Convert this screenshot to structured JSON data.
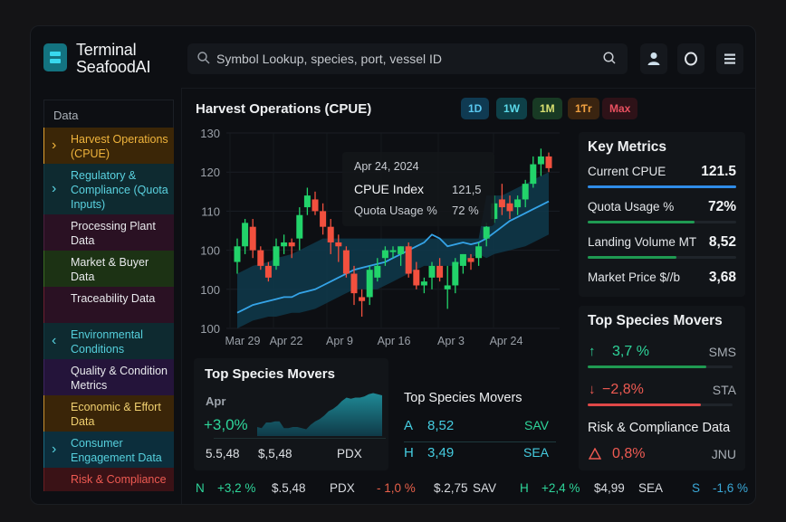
{
  "app": {
    "title_line1": "Terminal",
    "title_line2": "SeafoodAI",
    "logo_icon": "stack-icon"
  },
  "header": {
    "search_placeholder": "Symbol Lookup, species, port, vessel ID",
    "icons": [
      "search-icon",
      "user-icon",
      "circle-icon",
      "menu-icon"
    ]
  },
  "sidebar": {
    "title": "Data",
    "items": [
      {
        "label": "Harvest Operations (CPUE)",
        "chevron": "›",
        "text_color": "#f0b43c",
        "bg": "#3b2607",
        "border": "#e0a030"
      },
      {
        "label": "Regulatory & Compliance (Quota Inputs)",
        "chevron": "›",
        "text_color": "#5ad2e0",
        "bg": "#0e2a30",
        "border": "#123a42"
      },
      {
        "label": "Processing Plant Data",
        "chevron": "",
        "text_color": "#e8e9ec",
        "bg": "#2a1123",
        "border": "#4a1f3e"
      },
      {
        "label": "Market & Buyer Data",
        "chevron": "",
        "text_color": "#e8e9ec",
        "bg": "#1c3214",
        "border": "#3a6a22"
      },
      {
        "label": "Traceability Data",
        "chevron": "",
        "text_color": "#e8e9ec",
        "bg": "#2a1123",
        "border": "#6a2030"
      },
      {
        "label": "Environmental Conditions",
        "chevron": "‹",
        "text_color": "#55cfdc",
        "bg": "#0e2a30",
        "border": "#123a42"
      },
      {
        "label": "Quality & Condition Metrics",
        "chevron": "",
        "text_color": "#e8e9ec",
        "bg": "#24143a",
        "border": "#3d2560"
      },
      {
        "label": "Economic & Effort Data",
        "chevron": "",
        "text_color": "#f0d070",
        "bg": "#3a2508",
        "border": "#c89030"
      },
      {
        "label": "Consumer Engagement Data",
        "chevron": "›",
        "text_color": "#55cfdc",
        "bg": "#0c2e3c",
        "border": "#1a6a80"
      },
      {
        "label": "Risk & Compliance",
        "chevron": "",
        "text_color": "#ee5a52",
        "bg": "#3a1216",
        "border": "#6a1e22"
      }
    ]
  },
  "main": {
    "chart_title": "Harvest Operations (CPUE)",
    "timeframes": [
      {
        "label": "1D",
        "color": "#5ac8f0",
        "bg": "#0f3a52"
      },
      {
        "label": "1W",
        "color": "#5ad8e8",
        "bg": "#0e4048"
      },
      {
        "label": "1M",
        "color": "#d8e070",
        "bg": "#183a24"
      },
      {
        "label": "1Ƭr",
        "color": "#f0a040",
        "bg": "#3a2410"
      },
      {
        "label": "Max",
        "color": "#e85060",
        "bg": "#2e1218"
      }
    ],
    "tooltip": {
      "date": "Apr 24, 2024",
      "row1_label": "CPUE Index",
      "row1_value": "121,5",
      "row2_label": "Quota Usage %",
      "row2_value": "72 %"
    }
  },
  "chart_data": {
    "type": "candlestick",
    "title": "Harvest Operations (CPUE)",
    "y_tick_labels": [
      "130",
      "120",
      "110",
      "100",
      "100",
      "100"
    ],
    "x_tick_labels": [
      "Mar 29",
      "Apr 22",
      "Apr 9",
      "Apr 16",
      "Apr 3",
      "Apr 24"
    ],
    "ylim": [
      80,
      130
    ],
    "grid": true,
    "candles": [
      {
        "o": 97,
        "h": 103,
        "l": 94,
        "c": 101
      },
      {
        "o": 101,
        "h": 108,
        "l": 99,
        "c": 107
      },
      {
        "o": 106,
        "h": 108,
        "l": 98,
        "c": 100
      },
      {
        "o": 100,
        "h": 101,
        "l": 95,
        "c": 96
      },
      {
        "o": 96,
        "h": 97,
        "l": 92,
        "c": 93
      },
      {
        "o": 96,
        "h": 103,
        "l": 95,
        "c": 101
      },
      {
        "o": 101,
        "h": 104,
        "l": 99,
        "c": 102
      },
      {
        "o": 102,
        "h": 103,
        "l": 98,
        "c": 101
      },
      {
        "o": 103,
        "h": 111,
        "l": 100,
        "c": 109
      },
      {
        "o": 111,
        "h": 116,
        "l": 109,
        "c": 114
      },
      {
        "o": 113,
        "h": 115,
        "l": 109,
        "c": 110
      },
      {
        "o": 110,
        "h": 112,
        "l": 104,
        "c": 106
      },
      {
        "o": 106,
        "h": 108,
        "l": 99,
        "c": 102
      },
      {
        "o": 102,
        "h": 104,
        "l": 97,
        "c": 101
      },
      {
        "o": 100,
        "h": 101,
        "l": 93,
        "c": 94
      },
      {
        "o": 94,
        "h": 96,
        "l": 86,
        "c": 89
      },
      {
        "o": 88,
        "h": 90,
        "l": 83,
        "c": 87
      },
      {
        "o": 88,
        "h": 96,
        "l": 86,
        "c": 95
      },
      {
        "o": 93,
        "h": 98,
        "l": 92,
        "c": 96
      },
      {
        "o": 98,
        "h": 101,
        "l": 96,
        "c": 100
      },
      {
        "o": 100,
        "h": 101,
        "l": 98,
        "c": 100
      },
      {
        "o": 99,
        "h": 101,
        "l": 96,
        "c": 101
      },
      {
        "o": 101,
        "h": 102,
        "l": 93,
        "c": 94
      },
      {
        "o": 95,
        "h": 97,
        "l": 90,
        "c": 91
      },
      {
        "o": 91,
        "h": 93,
        "l": 89,
        "c": 92
      },
      {
        "o": 93,
        "h": 97,
        "l": 90,
        "c": 96
      },
      {
        "o": 96,
        "h": 98,
        "l": 92,
        "c": 93
      },
      {
        "o": 90,
        "h": 96,
        "l": 85,
        "c": 91
      },
      {
        "o": 91,
        "h": 98,
        "l": 89,
        "c": 97
      },
      {
        "o": 96,
        "h": 99,
        "l": 94,
        "c": 99
      },
      {
        "o": 98,
        "h": 99,
        "l": 95,
        "c": 97
      },
      {
        "o": 98,
        "h": 102,
        "l": 96,
        "c": 101
      },
      {
        "o": 103,
        "h": 107,
        "l": 101,
        "c": 106
      },
      {
        "o": 108,
        "h": 114,
        "l": 107,
        "c": 112
      },
      {
        "o": 113,
        "h": 117,
        "l": 109,
        "c": 111
      },
      {
        "o": 112,
        "h": 114,
        "l": 108,
        "c": 110
      },
      {
        "o": 111,
        "h": 114,
        "l": 109,
        "c": 113
      },
      {
        "o": 113,
        "h": 118,
        "l": 111,
        "c": 117
      },
      {
        "o": 117,
        "h": 124,
        "l": 116,
        "c": 122
      },
      {
        "o": 122,
        "h": 126,
        "l": 119,
        "c": 124
      },
      {
        "o": 124,
        "h": 125,
        "l": 120,
        "c": 121
      }
    ],
    "moving_average": [
      84,
      85,
      86,
      86.5,
      87,
      87.5,
      88,
      88,
      89,
      89.5,
      90,
      91,
      92,
      93,
      94,
      95,
      95.5,
      96,
      96.5,
      97,
      98,
      99,
      100,
      101,
      102,
      104,
      103,
      101,
      101.5,
      102,
      101.5,
      102,
      103,
      104.5,
      106,
      107.5,
      108.5,
      109.5,
      110.5,
      111.5,
      112.5
    ],
    "band_upper": [
      94,
      95,
      96,
      96.5,
      97,
      98,
      98.5,
      99,
      100,
      101,
      102,
      103,
      103,
      103,
      103,
      103,
      103,
      103,
      103,
      103,
      103,
      103,
      103,
      103,
      103,
      103,
      103,
      103,
      103,
      103,
      103,
      103,
      114,
      114,
      114,
      115,
      116,
      117,
      118,
      119,
      120
    ],
    "band_lower": [
      80,
      81,
      82,
      82.5,
      83,
      83,
      83.5,
      84,
      84,
      84.5,
      85,
      86,
      87,
      88,
      89,
      90,
      90,
      90,
      90,
      91,
      92,
      93,
      94,
      95,
      96,
      96,
      96,
      96,
      96,
      97,
      98,
      99,
      98,
      99,
      99.5,
      100,
      100.5,
      101,
      102,
      103,
      104
    ]
  },
  "key_metrics": {
    "title": "Key Metrics",
    "rows": [
      {
        "label": "Current CPUE",
        "value": "121.5",
        "progress": 1.0,
        "color": "#2f8ce8"
      },
      {
        "label": "Quota Usage %",
        "value": "72%",
        "progress": 0.72,
        "color": "#1f9a52"
      },
      {
        "label": "Landing Volume MT",
        "value": "8,52",
        "progress": 0.6,
        "color": "#1f9a52"
      },
      {
        "label": "Market Price $//b",
        "value": "3,68",
        "progress": null,
        "color": null
      }
    ]
  },
  "species_movers_right": {
    "title": "Top Species Movers",
    "rows": [
      {
        "arrow": "↑",
        "value": "3,7 %",
        "code": "SMS",
        "color": "#2ed59a",
        "bar_color": "#1f9a52",
        "progress": 0.82
      },
      {
        "arrow": "↓",
        "value": "−2,8%",
        "code": "STA",
        "color": "#ee5a52",
        "bar_color": "#e04848",
        "progress": 0.78
      }
    ]
  },
  "risk_compliance": {
    "title": "Risk & Compliance Data",
    "icon": "warning-triangle-icon",
    "value": "0,8%",
    "code": "JNU"
  },
  "species_movers_left": {
    "title": "Top Species Movers",
    "period": "Apr",
    "change": "+3,0%",
    "sparkline": [
      48,
      47,
      52,
      52,
      53,
      53,
      47,
      47,
      48,
      48,
      47,
      46,
      50,
      53,
      55,
      58,
      62,
      64,
      67,
      71,
      74,
      73,
      74,
      74,
      75,
      77,
      78,
      77,
      76
    ],
    "footer": [
      "5.5,48",
      "$,5,48",
      "PDX"
    ]
  },
  "species_movers_mid": {
    "title": "Top Species Movers",
    "rows": [
      {
        "letter": "A",
        "value": "8,52",
        "code": "SAV",
        "code_color": "#2ed59a"
      },
      {
        "letter": "H",
        "value": "3,49",
        "code": "SEA",
        "code_color": "#45cce0"
      }
    ]
  },
  "ticker": [
    {
      "text": "N",
      "color": "#2ed59a"
    },
    {
      "text": "+3,2 %",
      "color": "#2ed59a"
    },
    {
      "text": "$.5,48",
      "color": "#d8dbe0"
    },
    {
      "text": "PDX",
      "color": "#d8dbe0"
    },
    {
      "text": "- 1,0 %",
      "color": "#e8604a"
    },
    {
      "text": "$.2,75",
      "color": "#d8dbe0"
    },
    {
      "text": "SAV",
      "color": "#d8dbe0"
    },
    {
      "text": "H",
      "color": "#2ed59a"
    },
    {
      "text": "+2,4 %",
      "color": "#2ed59a"
    },
    {
      "text": "$4,99",
      "color": "#d8dbe0"
    },
    {
      "text": "SEA",
      "color": "#d8dbe0"
    },
    {
      "text": "S",
      "color": "#3aa8d8"
    },
    {
      "text": "-1,6 %",
      "color": "#3aa8d8"
    }
  ]
}
